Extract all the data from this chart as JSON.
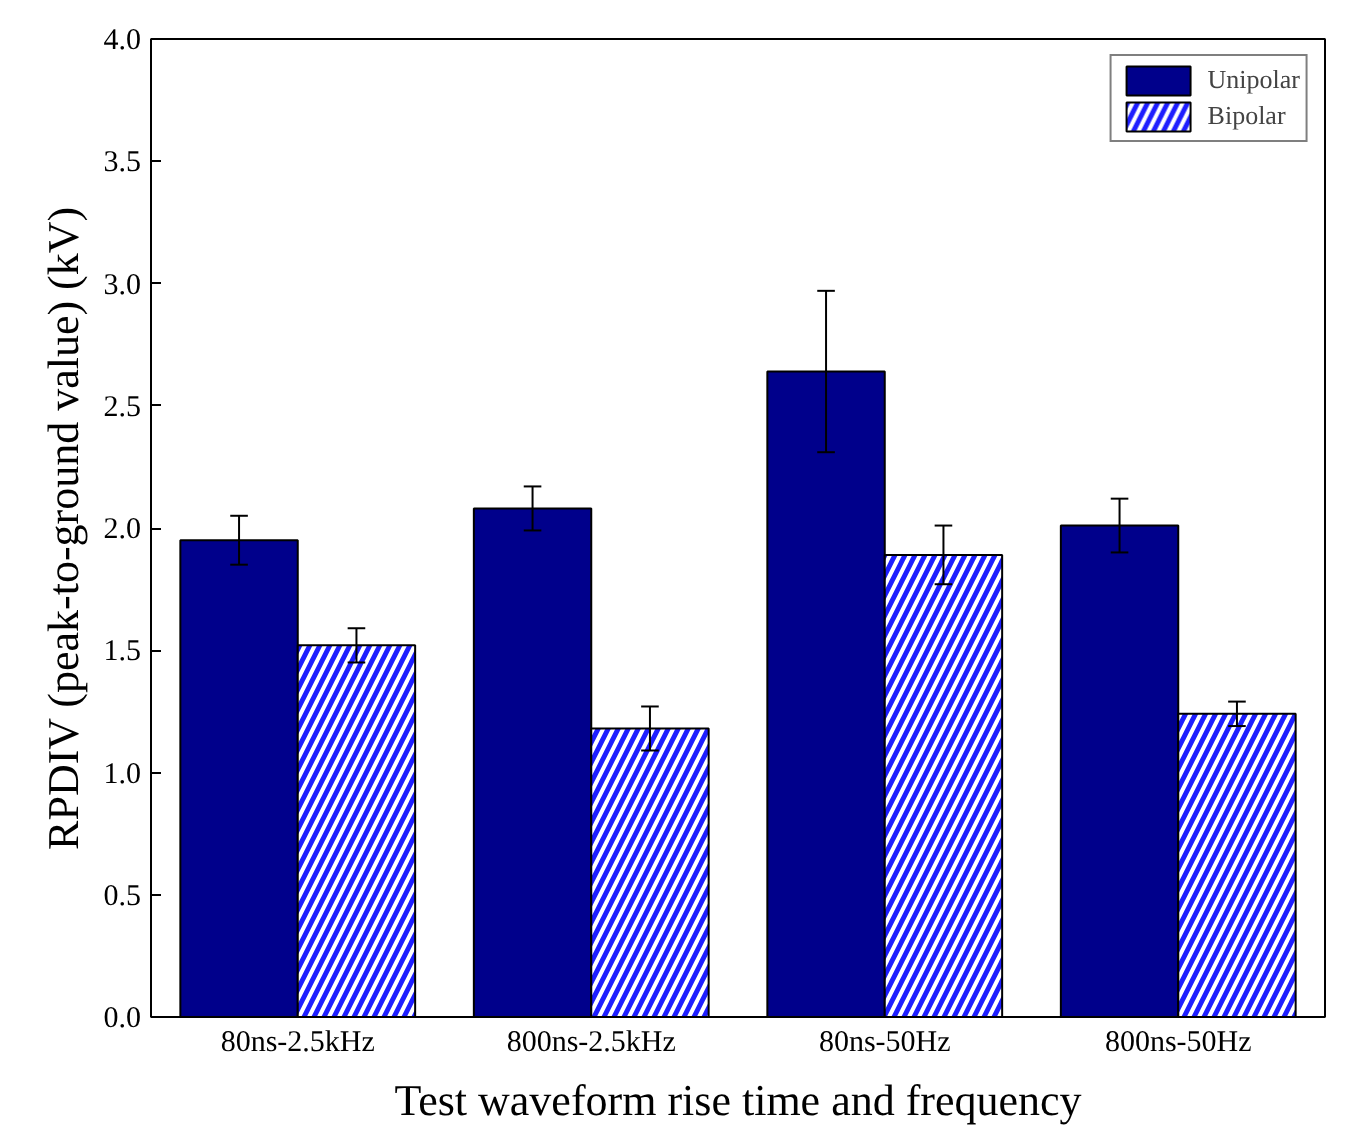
{
  "chart_data": {
    "type": "bar",
    "xlabel": "Test waveform rise time and frequency",
    "ylabel": "RPDIV (peak-to-ground value) (kV)",
    "categories": [
      "80ns-2.5kHz",
      "800ns-2.5kHz",
      "80ns-50Hz",
      "800ns-50Hz"
    ],
    "series": [
      {
        "name": "Unipolar",
        "color": "#00008b",
        "values": [
          1.95,
          2.08,
          2.64,
          2.01
        ],
        "errors": [
          0.1,
          0.09,
          0.33,
          0.11
        ]
      },
      {
        "name": "Bipolar",
        "color": "#1e1eff",
        "values": [
          1.52,
          1.18,
          1.89,
          1.24
        ],
        "errors": [
          0.07,
          0.09,
          0.12,
          0.05
        ]
      }
    ],
    "ylim": [
      0,
      4.0
    ],
    "yticks": [
      {
        "value": 0,
        "label": "0.0"
      },
      0.5,
      {
        "value": 1,
        "label": "1.0"
      },
      1.5,
      {
        "value": 2,
        "label": "2.0"
      },
      2.5,
      {
        "value": 3,
        "label": "3.0"
      },
      3.5,
      {
        "value": 4,
        "label": "4.0"
      }
    ],
    "grid": false,
    "legend": "top right"
  }
}
